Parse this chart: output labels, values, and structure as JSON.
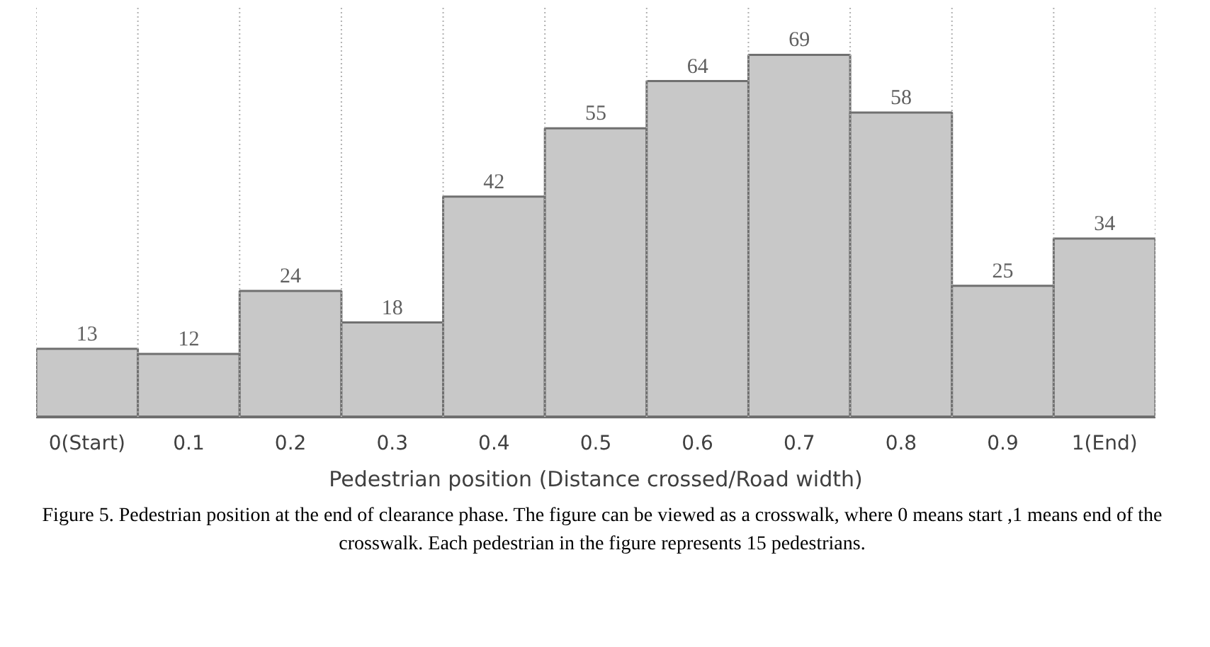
{
  "chart_data": {
    "type": "bar",
    "categories": [
      "0(Start)",
      "0.1",
      "0.2",
      "0.3",
      "0.4",
      "0.5",
      "0.6",
      "0.7",
      "0.8",
      "0.9",
      "1(End)"
    ],
    "values": [
      13,
      12,
      24,
      18,
      42,
      55,
      64,
      69,
      58,
      25,
      34
    ],
    "color": "#c8c8c8",
    "data_labels": true,
    "grid": "x",
    "xlabel": "Pedestrian position (Distance crossed/Road width)",
    "annotations": [
      "Figure 5. Pedestrian position at the end of clearance phase. The figure can be viewed as a crosswalk, where 0 means start ,1 means end of the crosswalk. Each pedestrian in the figure represents 15 pedestrians."
    ]
  }
}
